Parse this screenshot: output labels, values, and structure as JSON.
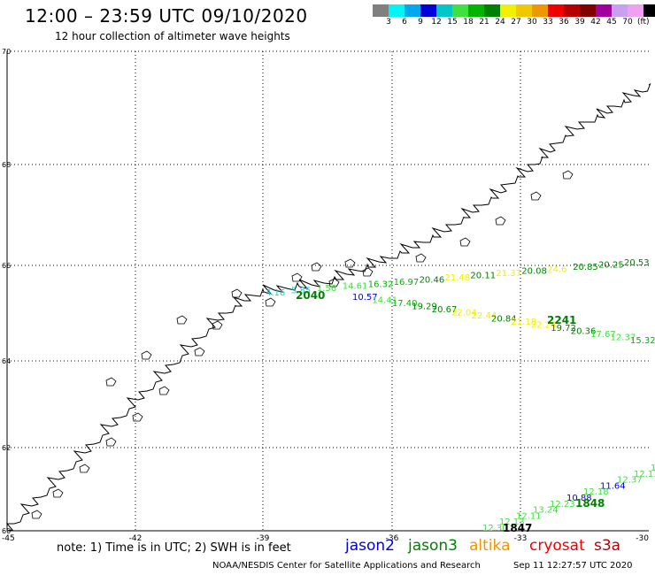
{
  "header": {
    "title": "12:00 – 23:59 UTC 09/10/2020",
    "subtitle": "12 hour collection of altimeter wave heights"
  },
  "legend": {
    "unit": "(ft)",
    "swatches": [
      {
        "color": "#808080",
        "label": ""
      },
      {
        "color": "#00f5f5",
        "label": "3"
      },
      {
        "color": "#00a8f0",
        "label": "6"
      },
      {
        "color": "#0000d8",
        "label": "9"
      },
      {
        "color": "#00c8c8",
        "label": "12"
      },
      {
        "color": "#40e040",
        "label": "15"
      },
      {
        "color": "#00b400",
        "label": "18"
      },
      {
        "color": "#008000",
        "label": "21"
      },
      {
        "color": "#f0f000",
        "label": "24"
      },
      {
        "color": "#f0c800",
        "label": "27"
      },
      {
        "color": "#f09600",
        "label": "30"
      },
      {
        "color": "#f00000",
        "label": "33"
      },
      {
        "color": "#b40000",
        "label": "36"
      },
      {
        "color": "#800000",
        "label": "39"
      },
      {
        "color": "#a000a0",
        "label": "42"
      },
      {
        "color": "#c8a0f0",
        "label": "45"
      },
      {
        "color": "#f0a0f0",
        "label": "70"
      },
      {
        "color": "#000000",
        "label": ""
      }
    ]
  },
  "map": {
    "lon_labels": [
      "-45",
      "-42",
      "-39",
      "-36",
      "-33",
      "-30"
    ],
    "lat_labels": [
      "70",
      "68",
      "66",
      "64",
      "62",
      "60"
    ],
    "lon_range": [
      -45,
      -30
    ],
    "lat_range": [
      60,
      70
    ],
    "track_a_upper": [
      {
        "text": "4.16",
        "color": "#00d8d8"
      },
      {
        "text": "5.85",
        "color": "#00d8d8"
      },
      {
        "text": "1.56",
        "color": "#40e040"
      },
      {
        "text": "14.61",
        "color": "#40e040"
      },
      {
        "text": "16.32",
        "color": "#00b400"
      },
      {
        "text": "16.97",
        "color": "#00b400"
      },
      {
        "text": "20.46",
        "color": "#008000"
      },
      {
        "text": "21.48",
        "color": "#f0f000"
      },
      {
        "text": "20.11",
        "color": "#008000"
      },
      {
        "text": "21.37",
        "color": "#f0f000"
      },
      {
        "text": "20.08",
        "color": "#008000"
      },
      {
        "text": "24.6",
        "color": "#f0f000"
      },
      {
        "text": "20.85",
        "color": "#008000"
      },
      {
        "text": "20.25",
        "color": "#008000"
      },
      {
        "text": "20.53",
        "color": "#008000"
      }
    ],
    "track_a_lower": [
      {
        "text": "10.57",
        "color": "#0000d8"
      },
      {
        "text": "14.41",
        "color": "#40e040"
      },
      {
        "text": "17.40",
        "color": "#00b400"
      },
      {
        "text": "19.29",
        "color": "#008000"
      },
      {
        "text": "20.67",
        "color": "#008000"
      },
      {
        "text": "22.04",
        "color": "#f0f000"
      },
      {
        "text": "22.44",
        "color": "#f0f000"
      },
      {
        "text": "20.84",
        "color": "#008000"
      },
      {
        "text": "21.18",
        "color": "#f0f000"
      },
      {
        "text": "22.24",
        "color": "#f0f000"
      },
      {
        "text": "19.72",
        "color": "#008000"
      },
      {
        "text": "20.36",
        "color": "#008000"
      },
      {
        "text": "17.67",
        "color": "#40e040"
      },
      {
        "text": "12.37",
        "color": "#40e040"
      },
      {
        "text": "15.32",
        "color": "#00b400"
      }
    ],
    "track_a_times": [
      {
        "text": "2040",
        "color": "#008000"
      },
      {
        "text": "2241",
        "color": "#008000"
      }
    ],
    "track_b": [
      {
        "text": "12.30",
        "color": "#40e040"
      },
      {
        "text": "12.13",
        "color": "#40e040"
      },
      {
        "text": "12.11",
        "color": "#40e040"
      },
      {
        "text": "13.24",
        "color": "#40e040"
      },
      {
        "text": "12.23",
        "color": "#40e040"
      },
      {
        "text": "10.88",
        "color": "#0000d8"
      },
      {
        "text": "12.18",
        "color": "#40e040"
      },
      {
        "text": "11.64",
        "color": "#0000d8"
      },
      {
        "text": "12.37",
        "color": "#40e040"
      },
      {
        "text": "12.13",
        "color": "#40e040"
      },
      {
        "text": "13.14",
        "color": "#40e040"
      }
    ],
    "track_b_times": [
      {
        "text": "1847",
        "color": "#000000"
      },
      {
        "text": "1848",
        "color": "#008000"
      }
    ]
  },
  "footer": {
    "note": "note: 1) Time is in UTC; 2) SWH is in feet",
    "missions": [
      {
        "name": "jason2",
        "color": "#0000d8"
      },
      {
        "name": "jason3",
        "color": "#008000"
      },
      {
        "name": "altika",
        "color": "#f09600"
      },
      {
        "name": "cryosat",
        "color": "#f00000"
      },
      {
        "name": "s3a",
        "color": "#b40000"
      }
    ],
    "credit": "NOAA/NESDIS Center for Satellite Applications and Research",
    "generated": "Sep 11 12:27:57 UTC 2020"
  }
}
